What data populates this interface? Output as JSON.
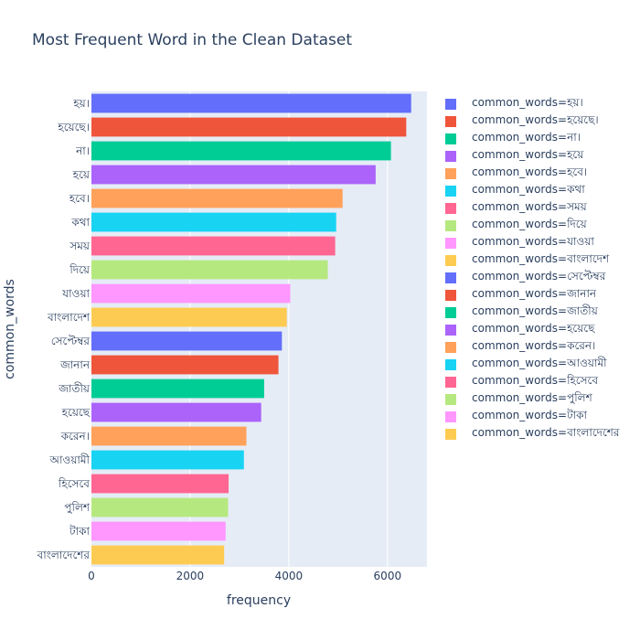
{
  "chart_data": {
    "type": "bar",
    "orientation": "horizontal",
    "title": "Most Frequent Word in the Clean Dataset",
    "xlabel": "frequency",
    "ylabel": "common_words",
    "legend_prefix": "common_words=",
    "legend_position": "right",
    "xlim": [
      0,
      6800
    ],
    "xticks": [
      0,
      2000,
      4000,
      6000
    ],
    "xtick_labels": [
      "0",
      "2000",
      "4000",
      "6000"
    ],
    "grid": true,
    "categories": [
      "হয়।",
      "হয়েছে।",
      "না।",
      "হয়ে",
      "হবে।",
      "কথা",
      "সময়",
      "দিয়ে",
      "যাওয়া",
      "বাংলাদেশ",
      "সেপ্টেম্বর",
      "জানান",
      "জাতীয়",
      "হয়েছে",
      "করেন।",
      "আওয়ামী",
      "হিসেবে",
      "পুলিশ",
      "টাকা",
      "বাংলাদেশের"
    ],
    "values": [
      6480,
      6380,
      6070,
      5760,
      5090,
      4960,
      4940,
      4790,
      4030,
      3960,
      3860,
      3790,
      3500,
      3440,
      3140,
      3090,
      2780,
      2770,
      2720,
      2690
    ],
    "colors": [
      "#636efa",
      "#EF553B",
      "#00cc96",
      "#ab63fa",
      "#FFA15A",
      "#19d3f3",
      "#FF6692",
      "#B6E880",
      "#FF97FF",
      "#FECB52",
      "#636efa",
      "#EF553B",
      "#00cc96",
      "#ab63fa",
      "#FFA15A",
      "#19d3f3",
      "#FF6692",
      "#B6E880",
      "#FF97FF",
      "#FECB52"
    ]
  }
}
